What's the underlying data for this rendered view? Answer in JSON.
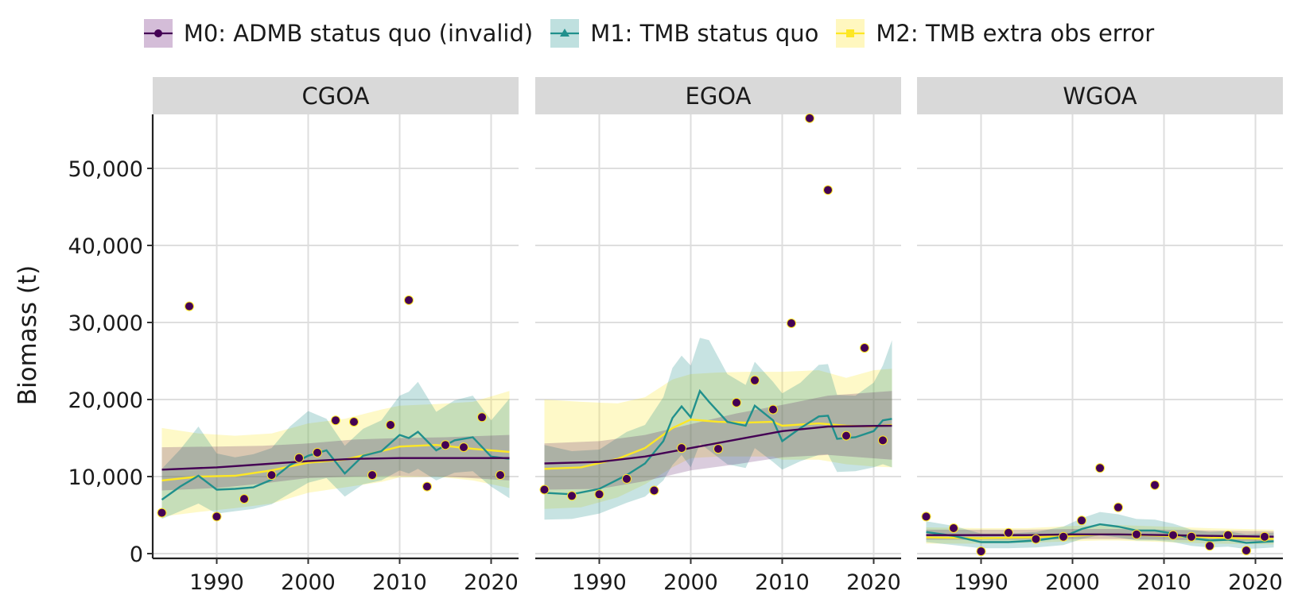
{
  "legend": [
    {
      "name": "M0: ADMB status quo (invalid)",
      "color": "#440154",
      "fill": "#d4bdd8",
      "marker": "circle"
    },
    {
      "name": "M1: TMB status quo",
      "color": "#21908c",
      "fill": "#bfe0df",
      "marker": "triangle"
    },
    {
      "name": "M2: TMB extra obs error",
      "color": "#fde725",
      "fill": "#fff7bf",
      "marker": "square"
    }
  ],
  "ylabel": "Biomass (t)",
  "chart_data": {
    "type": "line",
    "facets": [
      "CGOA",
      "EGOA",
      "WGOA"
    ],
    "xlim": [
      1983,
      2023
    ],
    "ylim": [
      0,
      57000
    ],
    "x_ticks": [
      1990,
      2000,
      2010,
      2020
    ],
    "y_ticks": [
      0,
      10000,
      20000,
      30000,
      40000,
      50000
    ],
    "y_tick_labels": [
      "0",
      "10,000",
      "20,000",
      "30,000",
      "40,000",
      "50,000"
    ],
    "grid": true,
    "legend_position": "top",
    "panels": [
      {
        "name": "CGOA",
        "observations": {
          "x": [
            1984,
            1987,
            1990,
            1993,
            1996,
            1999,
            2001,
            2003,
            2005,
            2007,
            2009,
            2011,
            2013,
            2015,
            2017,
            2019,
            2021
          ],
          "y": [
            5300,
            32100,
            4800,
            7100,
            10200,
            12400,
            13100,
            17300,
            17100,
            10200,
            16700,
            32900,
            8700,
            14100,
            13800,
            17700,
            10200
          ]
        },
        "series": [
          {
            "name": "M0: ADMB status quo (invalid)",
            "x": [
              1984,
              1990,
              1995,
              2000,
              2005,
              2010,
              2015,
              2022
            ],
            "y": [
              10900,
              11200,
              11600,
              12000,
              12300,
              12400,
              12400,
              12400
            ],
            "lo": [
              8200,
              8500,
              9100,
              9800,
              10000,
              10100,
              10000,
              9500
            ],
            "hi": [
              13800,
              13900,
              14000,
              14300,
              14800,
              15000,
              15100,
              15400
            ]
          },
          {
            "name": "M1: TMB status quo",
            "x": [
              1984,
              1986,
              1988,
              1990,
              1992,
              1994,
              1996,
              1998,
              2000,
              2002,
              2004,
              2006,
              2008,
              2010,
              2011,
              2012,
              2014,
              2016,
              2018,
              2020,
              2022
            ],
            "y": [
              7000,
              8700,
              10100,
              8300,
              8400,
              8600,
              9600,
              11500,
              12700,
              13400,
              10400,
              12700,
              13300,
              15400,
              15000,
              15800,
              13400,
              14700,
              15100,
              12600,
              12300
            ],
            "lo": [
              4500,
              5500,
              6500,
              5200,
              5500,
              5800,
              6400,
              7800,
              9200,
              9800,
              7400,
              9000,
              9500,
              10800,
              10400,
              11000,
              9500,
              10500,
              10700,
              8700,
              7200
            ],
            "hi": [
              11000,
              13500,
              16500,
              13000,
              12500,
              12900,
              13700,
              16500,
              18500,
              17500,
              14000,
              16200,
              17300,
              20500,
              21000,
              22300,
              18400,
              19900,
              20500,
              17300,
              20100
            ]
          },
          {
            "name": "M2: TMB extra obs error",
            "x": [
              1984,
              1988,
              1992,
              1996,
              2000,
              2004,
              2008,
              2010,
              2014,
              2018,
              2022
            ],
            "y": [
              9500,
              10000,
              10100,
              10800,
              11800,
              12200,
              13300,
              13900,
              14100,
              13600,
              13200
            ],
            "lo": [
              4800,
              5400,
              5900,
              6500,
              7900,
              8600,
              9300,
              9900,
              10000,
              9500,
              8500
            ],
            "hi": [
              16300,
              15600,
              15300,
              15600,
              16900,
              17500,
              18700,
              19200,
              19400,
              19700,
              21100
            ]
          }
        ]
      },
      {
        "name": "EGOA",
        "observations": {
          "x": [
            1984,
            1987,
            1990,
            1993,
            1996,
            1999,
            2003,
            2005,
            2007,
            2009,
            2011,
            2013,
            2015,
            2017,
            2019,
            2021
          ],
          "y": [
            8300,
            7500,
            7700,
            9700,
            8200,
            13700,
            13600,
            19600,
            22500,
            18700,
            29900,
            56500,
            47200,
            15300,
            26700,
            14700
          ]
        },
        "series": [
          {
            "name": "M0: ADMB status quo (invalid)",
            "x": [
              1984,
              1990,
              1995,
              2000,
              2005,
              2010,
              2015,
              2022
            ],
            "y": [
              11700,
              11900,
              12600,
              13700,
              14800,
              15900,
              16500,
              16600
            ],
            "lo": [
              8300,
              8400,
              9400,
              10800,
              11600,
              12500,
              12800,
              12200
            ],
            "hi": [
              14300,
              14600,
              15400,
              16800,
              18200,
              19300,
              20500,
              21100
            ]
          },
          {
            "name": "M1: TMB status quo",
            "x": [
              1984,
              1987,
              1990,
              1993,
              1995,
              1997,
              1998,
              1999,
              2000,
              2001,
              2002,
              2004,
              2006,
              2007,
              2009,
              2010,
              2012,
              2014,
              2015,
              2016,
              2018,
              2020,
              2021,
              2022
            ],
            "y": [
              7900,
              7700,
              8400,
              10200,
              11700,
              14600,
              17600,
              19100,
              17700,
              21100,
              19700,
              17100,
              16600,
              19200,
              17300,
              14600,
              16300,
              17800,
              17900,
              14900,
              15100,
              15900,
              17300,
              17500
            ],
            "lo": [
              4400,
              4500,
              5200,
              6600,
              7400,
              9500,
              11500,
              12800,
              11200,
              14300,
              13400,
              11600,
              11100,
              13700,
              11900,
              10900,
              12000,
              12800,
              12900,
              10600,
              10700,
              11200,
              11600,
              11200
            ],
            "hi": [
              14100,
              13300,
              13500,
              15800,
              16700,
              20300,
              24100,
              25700,
              24400,
              28000,
              27700,
              23300,
              21900,
              24900,
              22300,
              20800,
              22200,
              24500,
              24600,
              20600,
              20500,
              22200,
              24400,
              27700
            ]
          },
          {
            "name": "M2: TMB extra obs error",
            "x": [
              1984,
              1988,
              1992,
              1995,
              1998,
              2000,
              2003,
              2006,
              2009,
              2010,
              2014,
              2017,
              2020,
              2022
            ],
            "y": [
              11000,
              11200,
              12300,
              13700,
              16300,
              17400,
              17100,
              17000,
              17100,
              16600,
              16900,
              16600,
              16500,
              16700
            ],
            "lo": [
              5800,
              6000,
              7300,
              9000,
              11200,
              12400,
              12600,
              12600,
              12600,
              12200,
              12200,
              11600,
              11300,
              11200
            ],
            "hi": [
              20000,
              19700,
              19500,
              20300,
              22600,
              23300,
              23500,
              23600,
              23600,
              23600,
              23800,
              22800,
              23800,
              24000
            ]
          }
        ]
      },
      {
        "name": "WGOA",
        "observations": {
          "x": [
            1984,
            1987,
            1990,
            1993,
            1996,
            1999,
            2001,
            2003,
            2005,
            2007,
            2009,
            2011,
            2013,
            2015,
            2017,
            2019,
            2021
          ],
          "y": [
            4800,
            3300,
            300,
            2700,
            1900,
            2200,
            4300,
            11100,
            6000,
            2500,
            8900,
            2400,
            2200,
            1000,
            2400,
            400,
            2200
          ]
        },
        "series": [
          {
            "name": "M0: ADMB status quo (invalid)",
            "x": [
              1984,
              1990,
              1995,
              2000,
              2005,
              2010,
              2015,
              2022
            ],
            "y": [
              2400,
              2400,
              2400,
              2500,
              2500,
              2400,
              2300,
              2200
            ],
            "lo": [
              1800,
              1800,
              1800,
              1900,
              1900,
              1800,
              1700,
              1600
            ],
            "hi": [
              3100,
              3100,
              3100,
              3200,
              3200,
              3100,
              3000,
              2900
            ]
          },
          {
            "name": "M1: TMB status quo",
            "x": [
              1984,
              1987,
              1990,
              1993,
              1996,
              1999,
              2001,
              2003,
              2005,
              2007,
              2009,
              2011,
              2013,
              2015,
              2017,
              2019,
              2022
            ],
            "y": [
              2800,
              2300,
              1500,
              1500,
              1700,
              2200,
              3200,
              3800,
              3500,
              3000,
              3000,
              2600,
              2000,
              1700,
              1800,
              1400,
              1600
            ],
            "lo": [
              1500,
              1100,
              700,
              700,
              800,
              1100,
              1900,
              2400,
              2100,
              1700,
              1700,
              1500,
              1000,
              800,
              900,
              600,
              800
            ],
            "hi": [
              4200,
              3600,
              2600,
              2600,
              2800,
              3500,
              4600,
              5400,
              5100,
              4500,
              4400,
              3900,
              3100,
              2800,
              2900,
              2500,
              2700
            ]
          },
          {
            "name": "M2: TMB extra obs error",
            "x": [
              1984,
              1990,
              1995,
              2000,
              2003,
              2005,
              2010,
              2015,
              2022
            ],
            "y": [
              2100,
              2000,
              2100,
              2300,
              2500,
              2500,
              2300,
              2100,
              1900
            ],
            "lo": [
              1300,
              1300,
              1400,
              1600,
              1700,
              1700,
              1500,
              1300,
              1200
            ],
            "hi": [
              3400,
              3300,
              3300,
              3600,
              3700,
              3700,
              3500,
              3300,
              3100
            ]
          }
        ]
      }
    ]
  }
}
